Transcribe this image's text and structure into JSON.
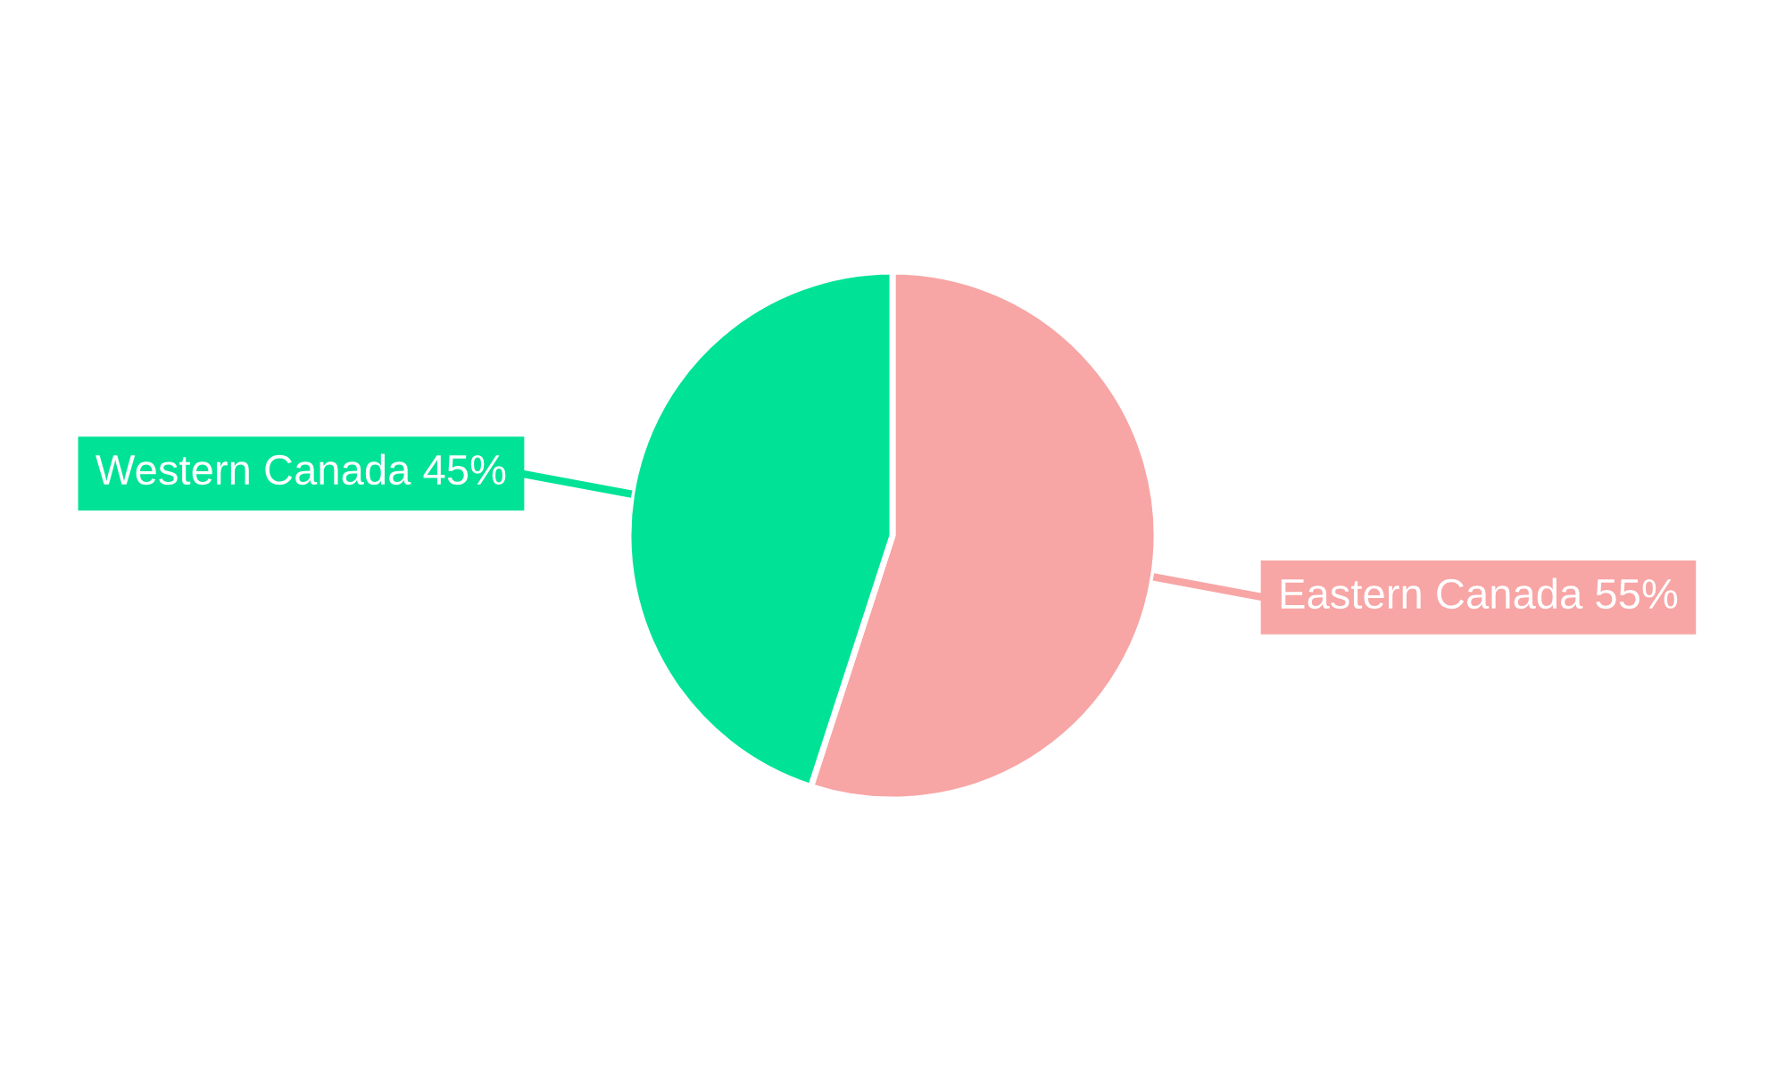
{
  "chart_data": {
    "type": "pie",
    "categories": [
      "Eastern Canada",
      "Western Canada"
    ],
    "values": [
      55,
      45
    ],
    "value_labels": [
      "55%",
      "45%"
    ],
    "colors": [
      "#f8a5a5",
      "#00e396"
    ],
    "legend": false
  }
}
